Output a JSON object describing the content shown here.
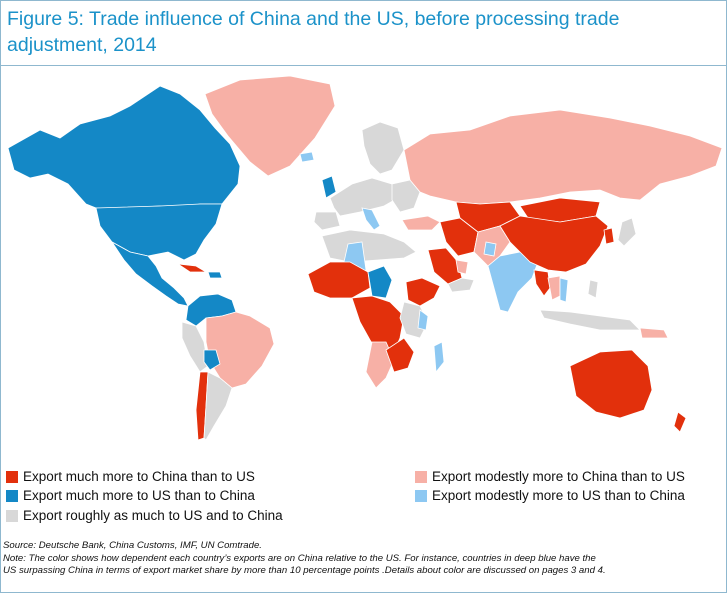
{
  "title": {
    "line1": "Figure 5: Trade influence of China and the US, before processing trade",
    "line2": "adjustment, 2014"
  },
  "colors": {
    "china_much": "#e2300c",
    "china_modest": "#f7b0a6",
    "us_much": "#1488c6",
    "us_modest": "#8dc8f2",
    "roughly_equal": "#d8d8d8"
  },
  "legend": {
    "china_much": "Export much more to China than to US",
    "us_much": "Export much more to US than to China",
    "roughly_equal": "Export roughly as much to US and to China",
    "china_modest": "Export modestly more to China than to US",
    "us_modest": "Export modestly more to US than to China"
  },
  "source": "Source: Deutsche Bank, China Customs, IMF, UN Comtrade.",
  "note_line1": "Note: The color shows how dependent each country’s exports are on China relative to the US. For instance, countries in deep blue have the",
  "note_line2": "US surpassing China in terms of export market share by more than 10 percentage points .Details about color are discussed on pages 3 and 4."
}
